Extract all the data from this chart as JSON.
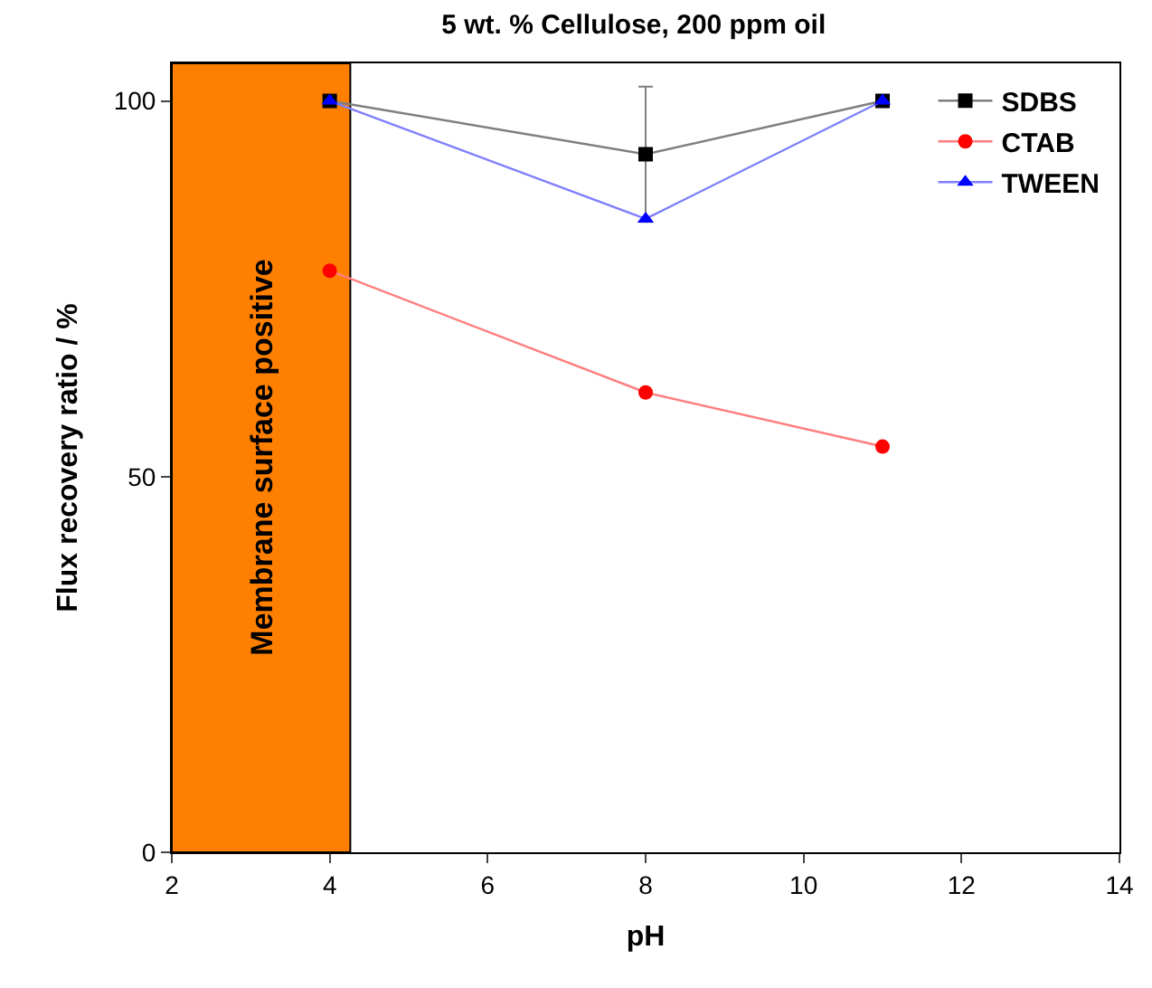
{
  "chart_data": {
    "type": "line",
    "title": "5 wt. % Cellulose, 200 ppm oil",
    "xlabel": "pH",
    "ylabel": "Flux recovery ratio / %",
    "xlim": [
      2,
      14
    ],
    "xticks": [
      2,
      4,
      6,
      8,
      10,
      12,
      14
    ],
    "ylim": [
      0,
      105
    ],
    "yticks": [
      0,
      50,
      100
    ],
    "grid": false,
    "legend": "top right",
    "series": [
      {
        "name": "SDBS",
        "color": "#000000",
        "marker": "square",
        "x": [
          4,
          8,
          11
        ],
        "values": [
          100,
          92.9,
          100
        ],
        "errors": [
          null,
          9,
          null
        ]
      },
      {
        "name": "CTAB",
        "color": "#ff0000",
        "marker": "circle",
        "x": [
          4,
          8,
          11
        ],
        "values": [
          77.4,
          61.2,
          54
        ]
      },
      {
        "name": "TWEEN",
        "color": "#0000ff",
        "marker": "triangle",
        "x": [
          4,
          8,
          11
        ],
        "values": [
          100,
          84.3,
          100
        ]
      }
    ],
    "bands": [
      {
        "axis": "x",
        "from": 2,
        "to": 4.26,
        "label": "Membrane surface positive",
        "color": "#ff8000"
      }
    ]
  }
}
